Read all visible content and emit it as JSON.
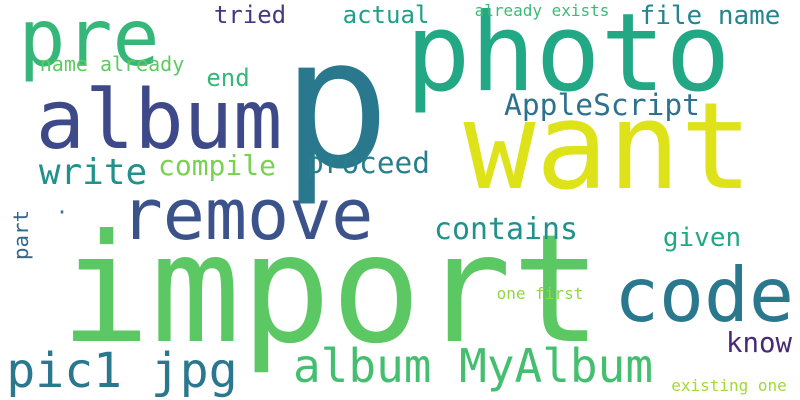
{
  "words": [
    {
      "text": "import",
      "color": "#5cc863",
      "vertical": false
    },
    {
      "text": "p",
      "color": "#2a788e",
      "vertical": false
    },
    {
      "text": "want",
      "color": "#dde318",
      "vertical": false
    },
    {
      "text": "photo",
      "color": "#22a884",
      "vertical": false
    },
    {
      "text": "remove",
      "color": "#3b528b",
      "vertical": false
    },
    {
      "text": "album",
      "color": "#3e4989",
      "vertical": false
    },
    {
      "text": "pre",
      "color": "#35b779",
      "vertical": false
    },
    {
      "text": "code",
      "color": "#2a788e",
      "vertical": false
    },
    {
      "text": "album MyAlbum",
      "color": "#44bf70",
      "vertical": false
    },
    {
      "text": "pic1 jpg",
      "color": "#2a788e",
      "vertical": false
    },
    {
      "text": "AppleScript",
      "color": "#2c728e",
      "vertical": false
    },
    {
      "text": "proceed",
      "color": "#277f8e",
      "vertical": false
    },
    {
      "text": "contains",
      "color": "#21918c",
      "vertical": false
    },
    {
      "text": "write",
      "color": "#21918c",
      "vertical": false
    },
    {
      "text": "compile",
      "color": "#7ad151",
      "vertical": false
    },
    {
      "text": "file name",
      "color": "#25848e",
      "vertical": false
    },
    {
      "text": "actual",
      "color": "#1f9e89",
      "vertical": false
    },
    {
      "text": "tried",
      "color": "#443983",
      "vertical": false
    },
    {
      "text": "end",
      "color": "#35b779",
      "vertical": false
    },
    {
      "text": "given",
      "color": "#22a884",
      "vertical": false
    },
    {
      "text": "know",
      "color": "#482878",
      "vertical": false
    },
    {
      "text": "part",
      "color": "#31688e",
      "vertical": true
    },
    {
      "text": "name already",
      "color": "#5ec962",
      "vertical": false
    },
    {
      "text": "already exists",
      "color": "#3aba76",
      "vertical": false
    },
    {
      "text": "one first",
      "color": "#8fd744",
      "vertical": false
    },
    {
      "text": "existing one",
      "color": "#a0da39",
      "vertical": false
    },
    {
      "text": "·",
      "color": "#2c728e",
      "vertical": false
    }
  ]
}
